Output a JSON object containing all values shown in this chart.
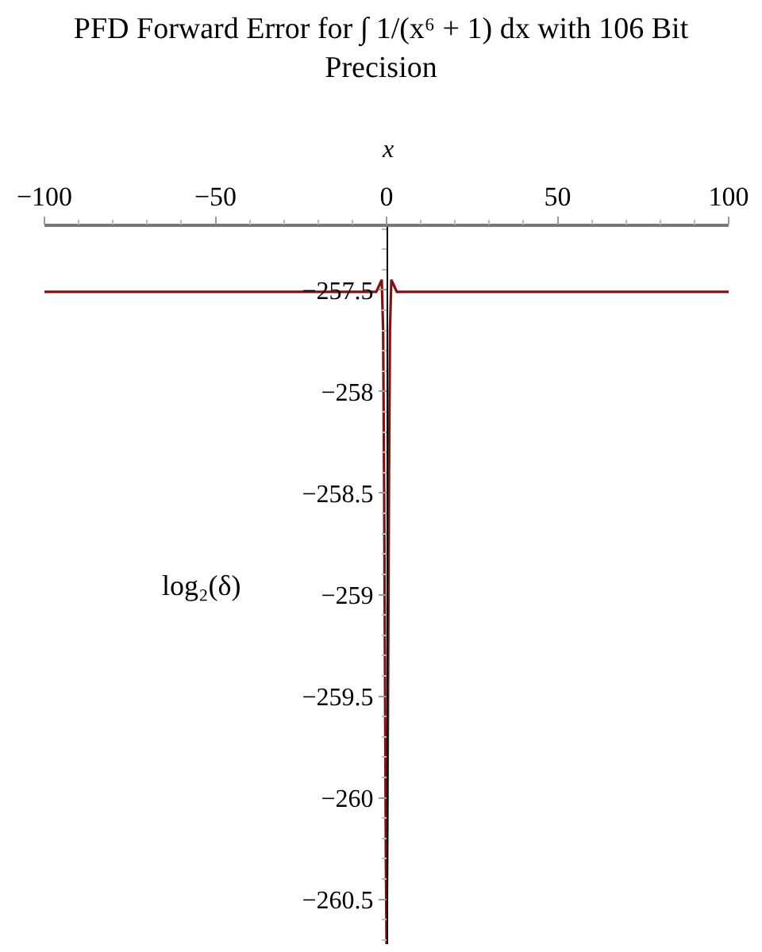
{
  "chart_data": {
    "type": "line",
    "title": "PFD Forward Error for ∫ 1/(x⁶ + 1) dx with 106 Bit Precision",
    "xlabel": "x",
    "ylabel": "log₂(δ)",
    "x": [
      -100,
      -20,
      -3,
      -2.2,
      -1.4,
      -1.0,
      -0.7,
      -0.4,
      -0.2,
      0,
      0.2,
      0.4,
      0.7,
      1.0,
      1.4,
      2.2,
      3,
      20,
      100
    ],
    "series": [
      {
        "color": "#7a1515",
        "values": [
          -257.51,
          -257.51,
          -257.51,
          -257.48,
          -257.45,
          -257.7,
          -258.5,
          -259.6,
          -260.3,
          -260.72,
          -260.3,
          -259.6,
          -258.5,
          -257.7,
          -257.45,
          -257.48,
          -257.51,
          -257.51,
          -257.51
        ]
      }
    ],
    "xlim": [
      -100,
      100
    ],
    "ylim": [
      -260.72,
      -257.19
    ],
    "xticks": [
      -100,
      {
        "value": -90,
        "label": null
      },
      {
        "value": -80,
        "label": null
      },
      {
        "value": -70,
        "label": null
      },
      {
        "value": -60,
        "label": null
      },
      -50,
      {
        "value": -40,
        "label": null
      },
      {
        "value": -30,
        "label": null
      },
      {
        "value": -20,
        "label": null
      },
      {
        "value": -10,
        "label": null
      },
      0,
      {
        "value": 10,
        "label": null
      },
      {
        "value": 20,
        "label": null
      },
      {
        "value": 30,
        "label": null
      },
      {
        "value": 40,
        "label": null
      },
      50,
      {
        "value": 60,
        "label": null
      },
      {
        "value": 70,
        "label": null
      },
      {
        "value": 80,
        "label": null
      },
      {
        "value": 90,
        "label": null
      },
      100
    ],
    "yticks": [
      {
        "value": -257.2,
        "label": null
      },
      {
        "value": -257.3,
        "label": null
      },
      {
        "value": -257.4,
        "label": null
      },
      -257.5,
      {
        "value": -257.6,
        "label": null
      },
      {
        "value": -257.7,
        "label": null
      },
      {
        "value": -257.8,
        "label": null
      },
      {
        "value": -257.9,
        "label": null
      },
      -258,
      {
        "value": -258.1,
        "label": null
      },
      {
        "value": -258.2,
        "label": null
      },
      {
        "value": -258.3,
        "label": null
      },
      {
        "value": -258.4,
        "label": null
      },
      -258.5,
      {
        "value": -258.6,
        "label": null
      },
      {
        "value": -258.7,
        "label": null
      },
      {
        "value": -258.8,
        "label": null
      },
      {
        "value": -258.9,
        "label": null
      },
      -259,
      {
        "value": -259.1,
        "label": null
      },
      {
        "value": -259.2,
        "label": null
      },
      {
        "value": -259.3,
        "label": null
      },
      {
        "value": -259.4,
        "label": null
      },
      -259.5,
      {
        "value": -259.6,
        "label": null
      },
      {
        "value": -259.7,
        "label": null
      },
      {
        "value": -259.8,
        "label": null
      },
      {
        "value": -259.9,
        "label": null
      },
      -260,
      {
        "value": -260.1,
        "label": null
      },
      {
        "value": -260.2,
        "label": null
      },
      {
        "value": -260.3,
        "label": null
      },
      {
        "value": -260.4,
        "label": null
      },
      -260.5,
      {
        "value": -260.6,
        "label": null
      },
      {
        "value": -260.7,
        "label": null
      }
    ],
    "grid": false,
    "marker": "none",
    "line_style": "solid"
  }
}
